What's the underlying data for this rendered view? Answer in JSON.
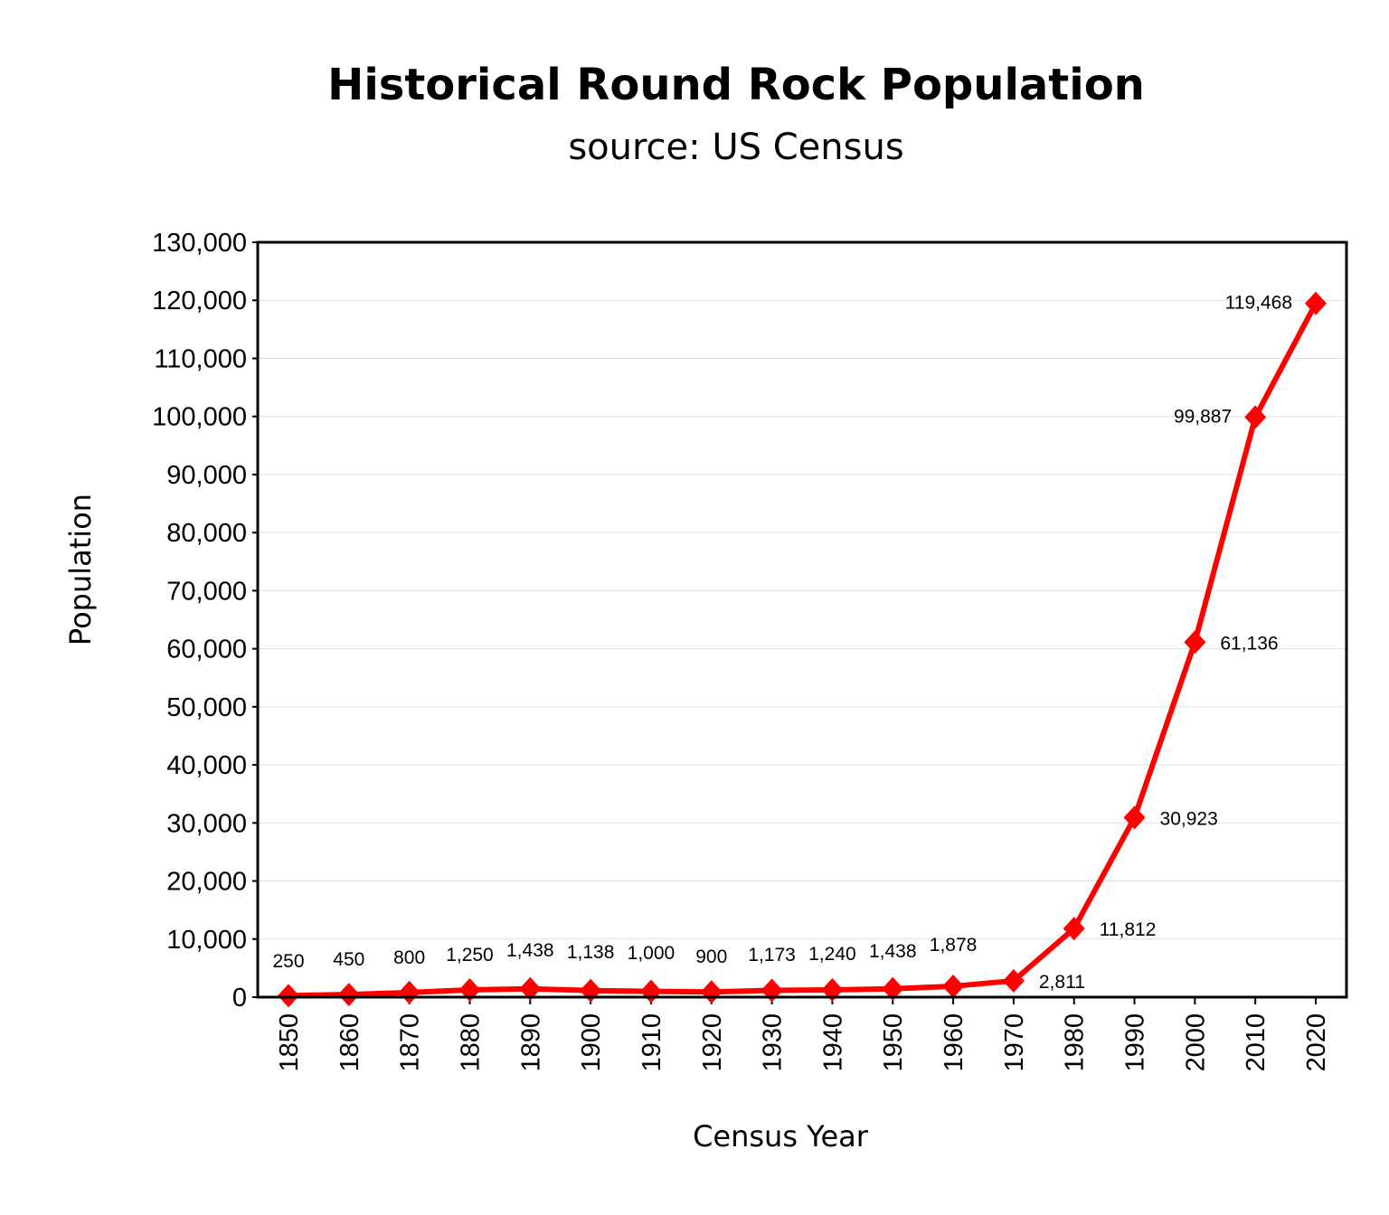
{
  "chart_data": {
    "type": "line",
    "title": "Historical Round Rock Population",
    "subtitle": "source: US Census",
    "xlabel": "Census Year",
    "ylabel": "Population",
    "x": [
      1850,
      1860,
      1870,
      1880,
      1890,
      1900,
      1910,
      1920,
      1930,
      1940,
      1950,
      1960,
      1970,
      1980,
      1990,
      2000,
      2010,
      2020
    ],
    "series": [
      {
        "values": [
          250,
          450,
          800,
          1250,
          1438,
          1138,
          1000,
          900,
          1173,
          1240,
          1438,
          1878,
          2811,
          11812,
          30923,
          61136,
          99887,
          119468
        ],
        "color": "#ff0000",
        "marker": "diamond"
      }
    ],
    "data_labels": [
      "250",
      "450",
      "800",
      "1,250",
      "1,438",
      "1,138",
      "1,000",
      "900",
      "1,173",
      "1,240",
      "1,438",
      "1,878",
      "2,811",
      "11,812",
      "30,923",
      "61,136",
      "99,887",
      "119,468"
    ],
    "ylim": [
      0,
      130000
    ],
    "yticks": [
      "0",
      "10,000",
      "20,000",
      "30,000",
      "40,000",
      "50,000",
      "60,000",
      "70,000",
      "80,000",
      "90,000",
      "100,000",
      "110,000",
      "120,000",
      "130,000"
    ],
    "xtick_rotation": "vertical",
    "grid": "horizontal",
    "grid_color": "#e0e0e0",
    "legend": "none"
  }
}
